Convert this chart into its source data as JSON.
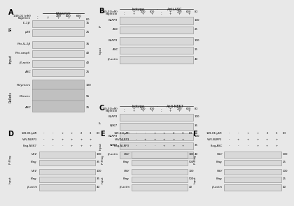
{
  "bg_color": "#e8e8e8",
  "panel_A": {
    "label": "A",
    "nigericin_label": "Nigericin",
    "row1_label": "149-01 (nM)",
    "row1_vals": [
      "-",
      "-",
      "200",
      "400",
      "600"
    ],
    "nig_vals": [
      "-",
      "+",
      "+",
      "+",
      "+"
    ],
    "sn_label": "SN",
    "input_label": "Input",
    "pellets_label": "Pellets",
    "sn_bands": [
      "IL-1β",
      "p20"
    ],
    "sn_kd": [
      "15",
      "25"
    ],
    "input_bands": [
      "Pro-IL-1β",
      "Pro-casp5",
      "β-actin",
      "ASC"
    ],
    "input_kd": [
      "35",
      "40",
      "40",
      "25"
    ],
    "pellet_bands": [
      "Polymers",
      "Dimers",
      "ASC"
    ],
    "pellet_kd": [
      "100",
      "55",
      "25"
    ]
  },
  "panel_B": {
    "label": "B",
    "isotype_label": "Isotype",
    "anti_label": "Anti-ASC",
    "row1_label": "149-01(nM)",
    "row1_vals": [
      "-",
      "+",
      "200",
      "600",
      "-",
      "+",
      "200",
      "600"
    ],
    "nig_vals": [
      "-",
      "+",
      "+",
      "+",
      "-",
      "+",
      "+",
      "+"
    ],
    "ip_label": "IP",
    "input_label": "Input",
    "ip_bands": [
      "NLRP3",
      "ASC"
    ],
    "ip_kd": [
      "100",
      "25"
    ],
    "input_bands": [
      "NLRP3",
      "ASC",
      "β-actin"
    ],
    "input_kd": [
      "100",
      "25",
      "40"
    ]
  },
  "panel_C": {
    "label": "C",
    "isotype_label": "Isotype",
    "anti_label": "Anti-NEK7",
    "row1_label": "149-01(nM)",
    "row1_vals": [
      "-",
      "+",
      "200",
      "600",
      "-",
      "+",
      "200",
      "600"
    ],
    "nig_vals": [
      "-",
      "+",
      "+",
      "+",
      "-",
      "+",
      "+",
      "+"
    ],
    "ip_label": "IP",
    "input_label": "Input",
    "ip_bands": [
      "NLRP3",
      "NEK7"
    ],
    "ip_kd": [
      "100",
      "35"
    ],
    "input_bands": [
      "NLRP3",
      "NEK7",
      "β-actin"
    ],
    "input_kd": [
      "100",
      "35",
      "40"
    ]
  },
  "panel_D": {
    "label": "D",
    "row1_label": "149-01(μM)",
    "row1_vals": [
      "-",
      "-",
      "+",
      "+",
      "2",
      "3"
    ],
    "row2_label": "VSV-NLRP3",
    "row2_vals": [
      "-",
      "+",
      "+",
      "+",
      "+",
      "+"
    ],
    "row3_label": "Flag-NEK7",
    "row3_vals": [
      "-",
      "-",
      "-",
      "+",
      "+",
      "+"
    ],
    "ip_label": "IP:Flag",
    "input_label": "Input",
    "ip_bands": [
      "VSV",
      "Flag"
    ],
    "ip_kd": [
      "100",
      "35"
    ],
    "input_bands": [
      "VSV",
      "Flag",
      "β-actin"
    ],
    "input_kd": [
      "100",
      "35",
      "40"
    ]
  },
  "panel_E": {
    "label": "E",
    "row1_label": "149-01(μM)",
    "row1_vals": [
      "-",
      "-",
      "+",
      "+",
      "2",
      "3"
    ],
    "row2_label": "VSV-NLRP3",
    "row2_vals": [
      "-",
      "+",
      "+",
      "+",
      "+",
      "+"
    ],
    "row3_label": "Flag-NLRP3",
    "row3_vals": [
      "-",
      "-",
      "-",
      "+",
      "+",
      "+"
    ],
    "ip_label": "IP:Flag",
    "input_label": "Input",
    "ip_bands": [
      "VSV",
      "Flag"
    ],
    "ip_kd": [
      "100",
      "500"
    ],
    "input_bands": [
      "VSV",
      "Flag",
      "β-actin"
    ],
    "input_kd": [
      "100",
      "500",
      "40"
    ]
  },
  "panel_F": {
    "label": "F",
    "row1_label": "149-01(μM)",
    "row1_vals": [
      "-",
      "-",
      "+",
      "+",
      "2",
      "3"
    ],
    "row2_label": "VSV-NLRP3",
    "row2_vals": [
      "-",
      "+",
      "+",
      "+",
      "+",
      "+"
    ],
    "row3_label": "Flag-ASC",
    "row3_vals": [
      "-",
      "-",
      "-",
      "+",
      "+",
      "+"
    ],
    "ip_label": "IP:Flag",
    "input_label": "Input",
    "ip_bands": [
      "VSV",
      "Flag"
    ],
    "ip_kd": [
      "100",
      "25"
    ],
    "input_bands": [
      "VSV",
      "Flag",
      "β-actin"
    ],
    "input_kd": [
      "100",
      "25",
      "40"
    ]
  }
}
